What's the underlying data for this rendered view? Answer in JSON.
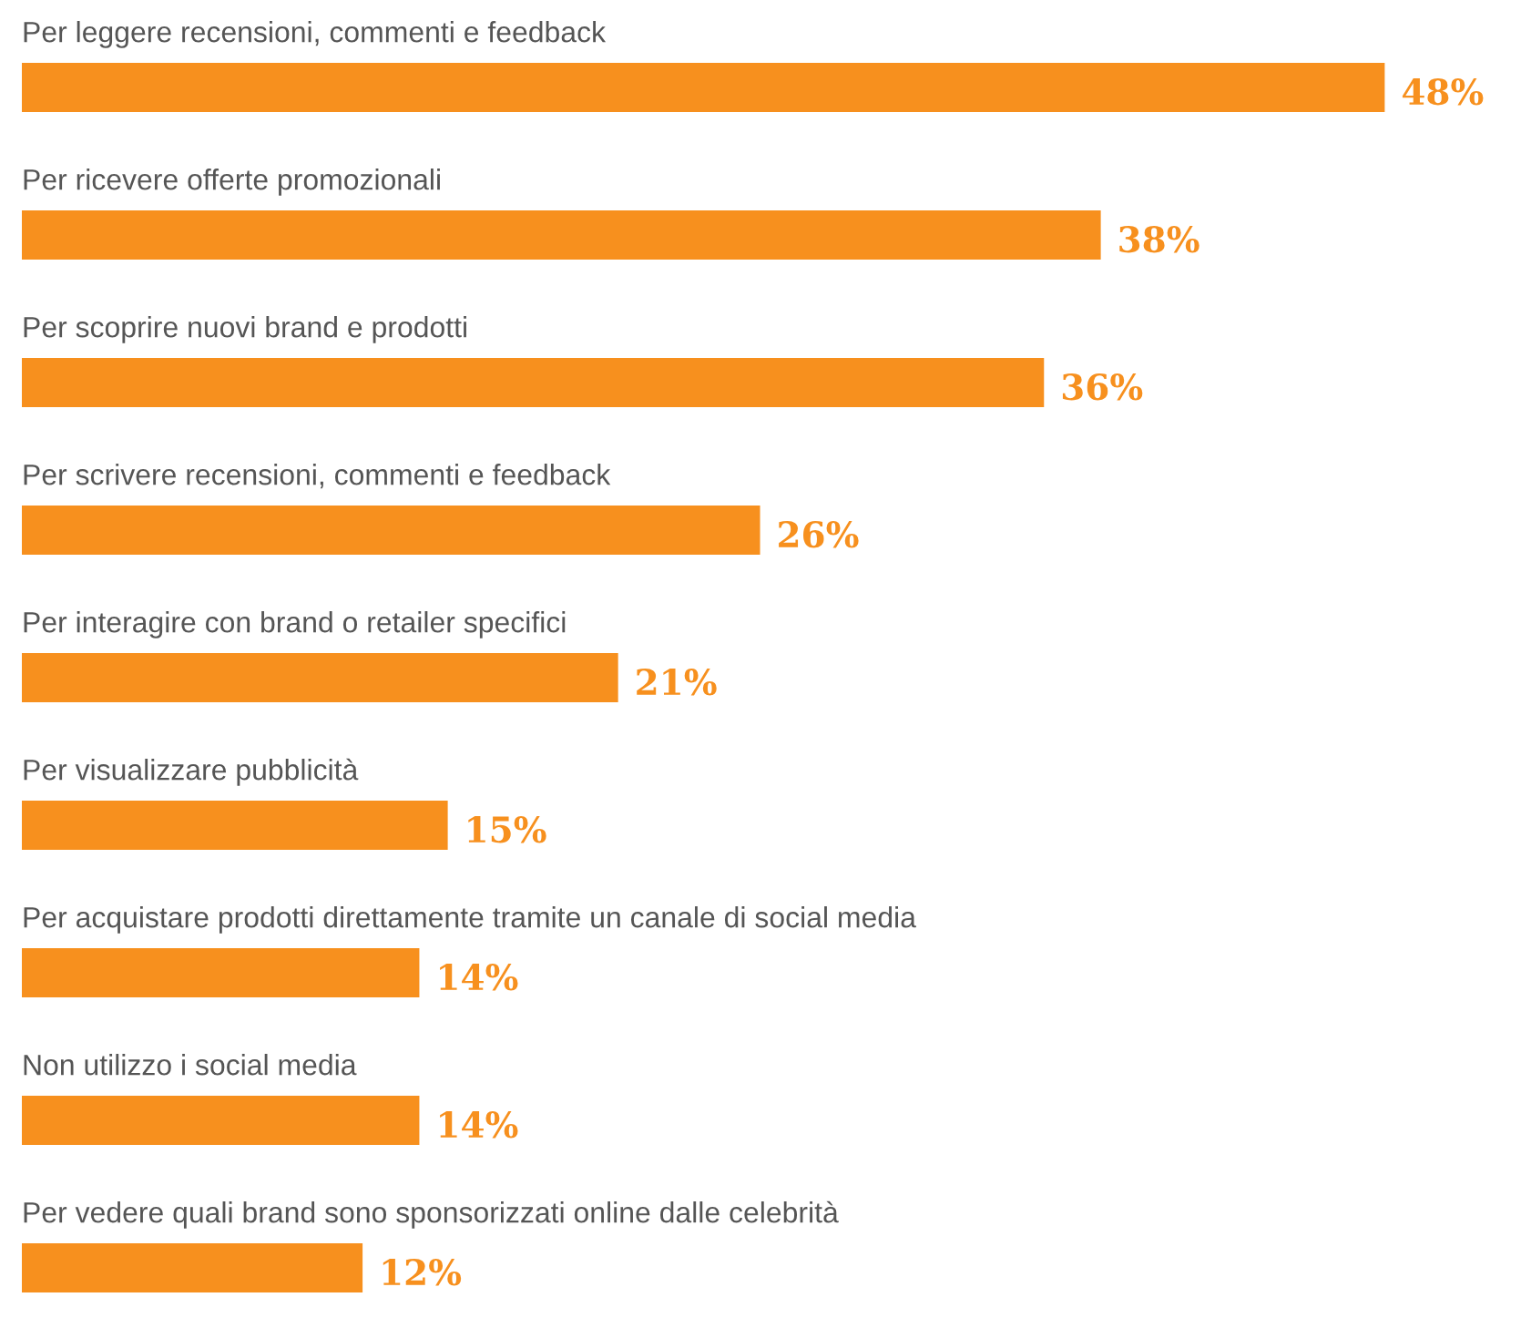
{
  "chart_data": {
    "type": "bar",
    "orientation": "horizontal",
    "categories": [
      "Per leggere recensioni, commenti e feedback",
      "Per ricevere offerte promozionali",
      "Per scoprire nuovi brand e prodotti",
      "Per scrivere recensioni, commenti e feedback",
      "Per interagire con brand o retailer specifici",
      "Per visualizzare pubblicità",
      "Per acquistare prodotti direttamente tramite un canale di social media",
      "Non utilizzo i social media",
      "Per vedere quali brand sono sponsorizzati online dalle celebrità"
    ],
    "values": [
      48,
      38,
      36,
      26,
      21,
      15,
      14,
      14,
      12
    ],
    "value_labels": [
      "48%",
      "38%",
      "36%",
      "26%",
      "21%",
      "15%",
      "14%",
      "14%",
      "12%"
    ],
    "color": "#f7901e"
  }
}
